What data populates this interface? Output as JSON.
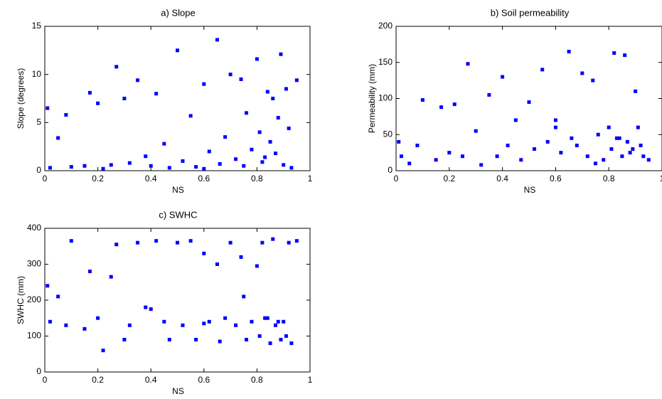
{
  "chart_data": [
    {
      "type": "scatter",
      "title": "a) Slope",
      "xlabel": "NS",
      "ylabel": "Slope (degrees)",
      "color": "#0000ff",
      "xlim": [
        0,
        1
      ],
      "ylim": [
        0,
        15
      ],
      "xticks": [
        0,
        0.2,
        0.4,
        0.6,
        0.8,
        1
      ],
      "yticks": [
        0,
        5,
        10,
        15
      ],
      "x": [
        0.01,
        0.02,
        0.05,
        0.08,
        0.1,
        0.15,
        0.17,
        0.2,
        0.22,
        0.25,
        0.27,
        0.3,
        0.32,
        0.35,
        0.38,
        0.4,
        0.42,
        0.45,
        0.47,
        0.5,
        0.52,
        0.55,
        0.57,
        0.6,
        0.62,
        0.65,
        0.66,
        0.68,
        0.7,
        0.72,
        0.74,
        0.76,
        0.78,
        0.8,
        0.81,
        0.82,
        0.84,
        0.85,
        0.86,
        0.87,
        0.88,
        0.89,
        0.9,
        0.91,
        0.92,
        0.93,
        0.95,
        0.6,
        0.75,
        0.83
      ],
      "values": [
        6.5,
        0.3,
        3.4,
        5.8,
        0.4,
        0.5,
        8.1,
        7.0,
        0.2,
        0.6,
        10.8,
        7.5,
        0.8,
        9.4,
        1.5,
        0.5,
        8.0,
        2.8,
        0.3,
        12.5,
        1.0,
        5.7,
        0.4,
        9.0,
        2.0,
        13.6,
        0.7,
        3.5,
        10.0,
        1.2,
        9.5,
        6.0,
        2.2,
        11.6,
        4.0,
        0.9,
        8.2,
        3.0,
        7.5,
        1.8,
        5.5,
        12.1,
        0.6,
        8.5,
        4.4,
        0.3,
        9.4,
        0.2,
        0.5,
        1.4
      ]
    },
    {
      "type": "scatter",
      "title": "b) Soil permeability",
      "xlabel": "NS",
      "ylabel": "Permeability (mm)",
      "color": "#0000ff",
      "xlim": [
        0,
        1
      ],
      "ylim": [
        0,
        200
      ],
      "xticks": [
        0,
        0.2,
        0.4,
        0.6,
        0.8,
        1
      ],
      "yticks": [
        0,
        50,
        100,
        150,
        200
      ],
      "x": [
        0.01,
        0.02,
        0.05,
        0.08,
        0.1,
        0.15,
        0.17,
        0.2,
        0.22,
        0.25,
        0.27,
        0.3,
        0.32,
        0.35,
        0.38,
        0.4,
        0.42,
        0.45,
        0.47,
        0.5,
        0.52,
        0.55,
        0.57,
        0.6,
        0.62,
        0.65,
        0.66,
        0.68,
        0.7,
        0.72,
        0.74,
        0.76,
        0.78,
        0.8,
        0.81,
        0.82,
        0.84,
        0.85,
        0.86,
        0.87,
        0.88,
        0.89,
        0.9,
        0.91,
        0.92,
        0.93,
        0.95,
        0.6,
        0.75,
        0.83
      ],
      "values": [
        40,
        20,
        10,
        35,
        98,
        15,
        88,
        25,
        92,
        20,
        148,
        55,
        8,
        105,
        20,
        130,
        35,
        70,
        15,
        95,
        30,
        140,
        40,
        60,
        25,
        165,
        45,
        35,
        135,
        20,
        125,
        50,
        15,
        60,
        30,
        163,
        45,
        20,
        160,
        40,
        25,
        30,
        110,
        60,
        35,
        20,
        15,
        70,
        10,
        45
      ]
    },
    {
      "type": "scatter",
      "title": "c) SWHC",
      "xlabel": "NS",
      "ylabel": "SWHC (mm)",
      "color": "#0000ff",
      "xlim": [
        0,
        1
      ],
      "ylim": [
        0,
        400
      ],
      "xticks": [
        0,
        0.2,
        0.4,
        0.6,
        0.8,
        1
      ],
      "yticks": [
        0,
        100,
        200,
        300,
        400
      ],
      "x": [
        0.01,
        0.02,
        0.05,
        0.08,
        0.1,
        0.15,
        0.17,
        0.2,
        0.22,
        0.25,
        0.27,
        0.3,
        0.32,
        0.35,
        0.38,
        0.4,
        0.42,
        0.45,
        0.47,
        0.5,
        0.52,
        0.55,
        0.57,
        0.6,
        0.62,
        0.65,
        0.66,
        0.68,
        0.7,
        0.72,
        0.74,
        0.76,
        0.78,
        0.8,
        0.81,
        0.82,
        0.84,
        0.85,
        0.86,
        0.87,
        0.88,
        0.89,
        0.9,
        0.91,
        0.92,
        0.93,
        0.95,
        0.6,
        0.75,
        0.83
      ],
      "values": [
        240,
        140,
        210,
        130,
        365,
        120,
        280,
        150,
        60,
        265,
        355,
        90,
        130,
        360,
        180,
        175,
        365,
        140,
        90,
        360,
        130,
        365,
        90,
        330,
        140,
        300,
        85,
        150,
        360,
        130,
        320,
        90,
        140,
        295,
        100,
        360,
        150,
        80,
        370,
        130,
        140,
        90,
        140,
        100,
        360,
        80,
        365,
        135,
        210,
        150
      ]
    }
  ]
}
